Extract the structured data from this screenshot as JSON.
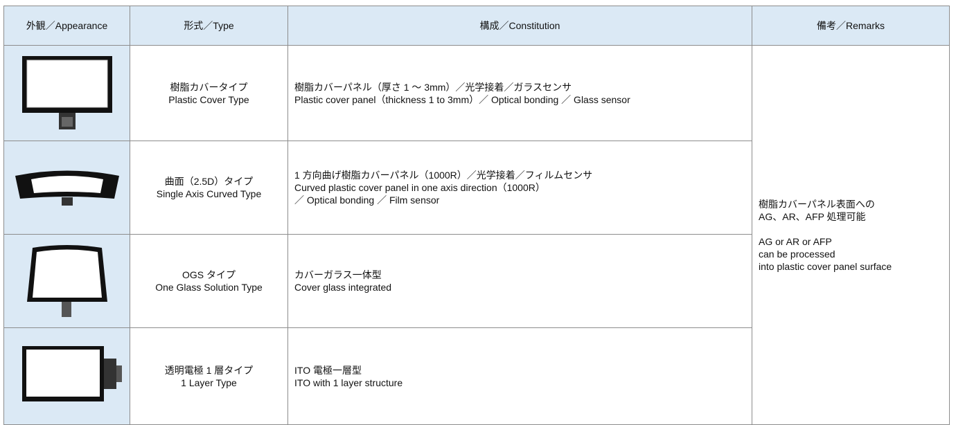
{
  "table": {
    "headers": [
      "外観／Appearance",
      "形式／Type",
      "構成／Constitution",
      "備考／Remarks"
    ],
    "rows": [
      {
        "type": [
          "樹脂カバータイプ",
          "Plastic Cover Type"
        ],
        "constitution": [
          "樹脂カバーパネル（厚さ 1 ～ 3mm）／光学接着／ガラスセンサ",
          "Plastic cover panel（thickness 1 to 3mm）／ Optical bonding ／ Glass sensor"
        ]
      },
      {
        "type": [
          "曲面（2.5D）タイプ",
          "Single Axis Curved Type"
        ],
        "constitution": [
          "1 方向曲げ樹脂カバーパネル（1000R）／光学接着／フィルムセンサ",
          "Curved plastic cover panel in one axis direction（1000R）",
          "／ Optical bonding ／ Film sensor"
        ]
      },
      {
        "type": [
          "OGS タイプ",
          "One Glass Solution Type"
        ],
        "constitution": [
          "カバーガラス一体型",
          "Cover glass integrated"
        ]
      },
      {
        "type": [
          "透明電極 1 層タイプ",
          "1 Layer Type"
        ],
        "constitution": [
          "ITO 電極一層型",
          "ITO with 1 layer structure"
        ]
      }
    ],
    "remarks": [
      [
        "樹脂カバーパネル表面への",
        "AG、AR、AFP 処理可能"
      ],
      [
        "AG or AR or AFP",
        "can be processed",
        "into plastic cover panel surface"
      ]
    ]
  }
}
